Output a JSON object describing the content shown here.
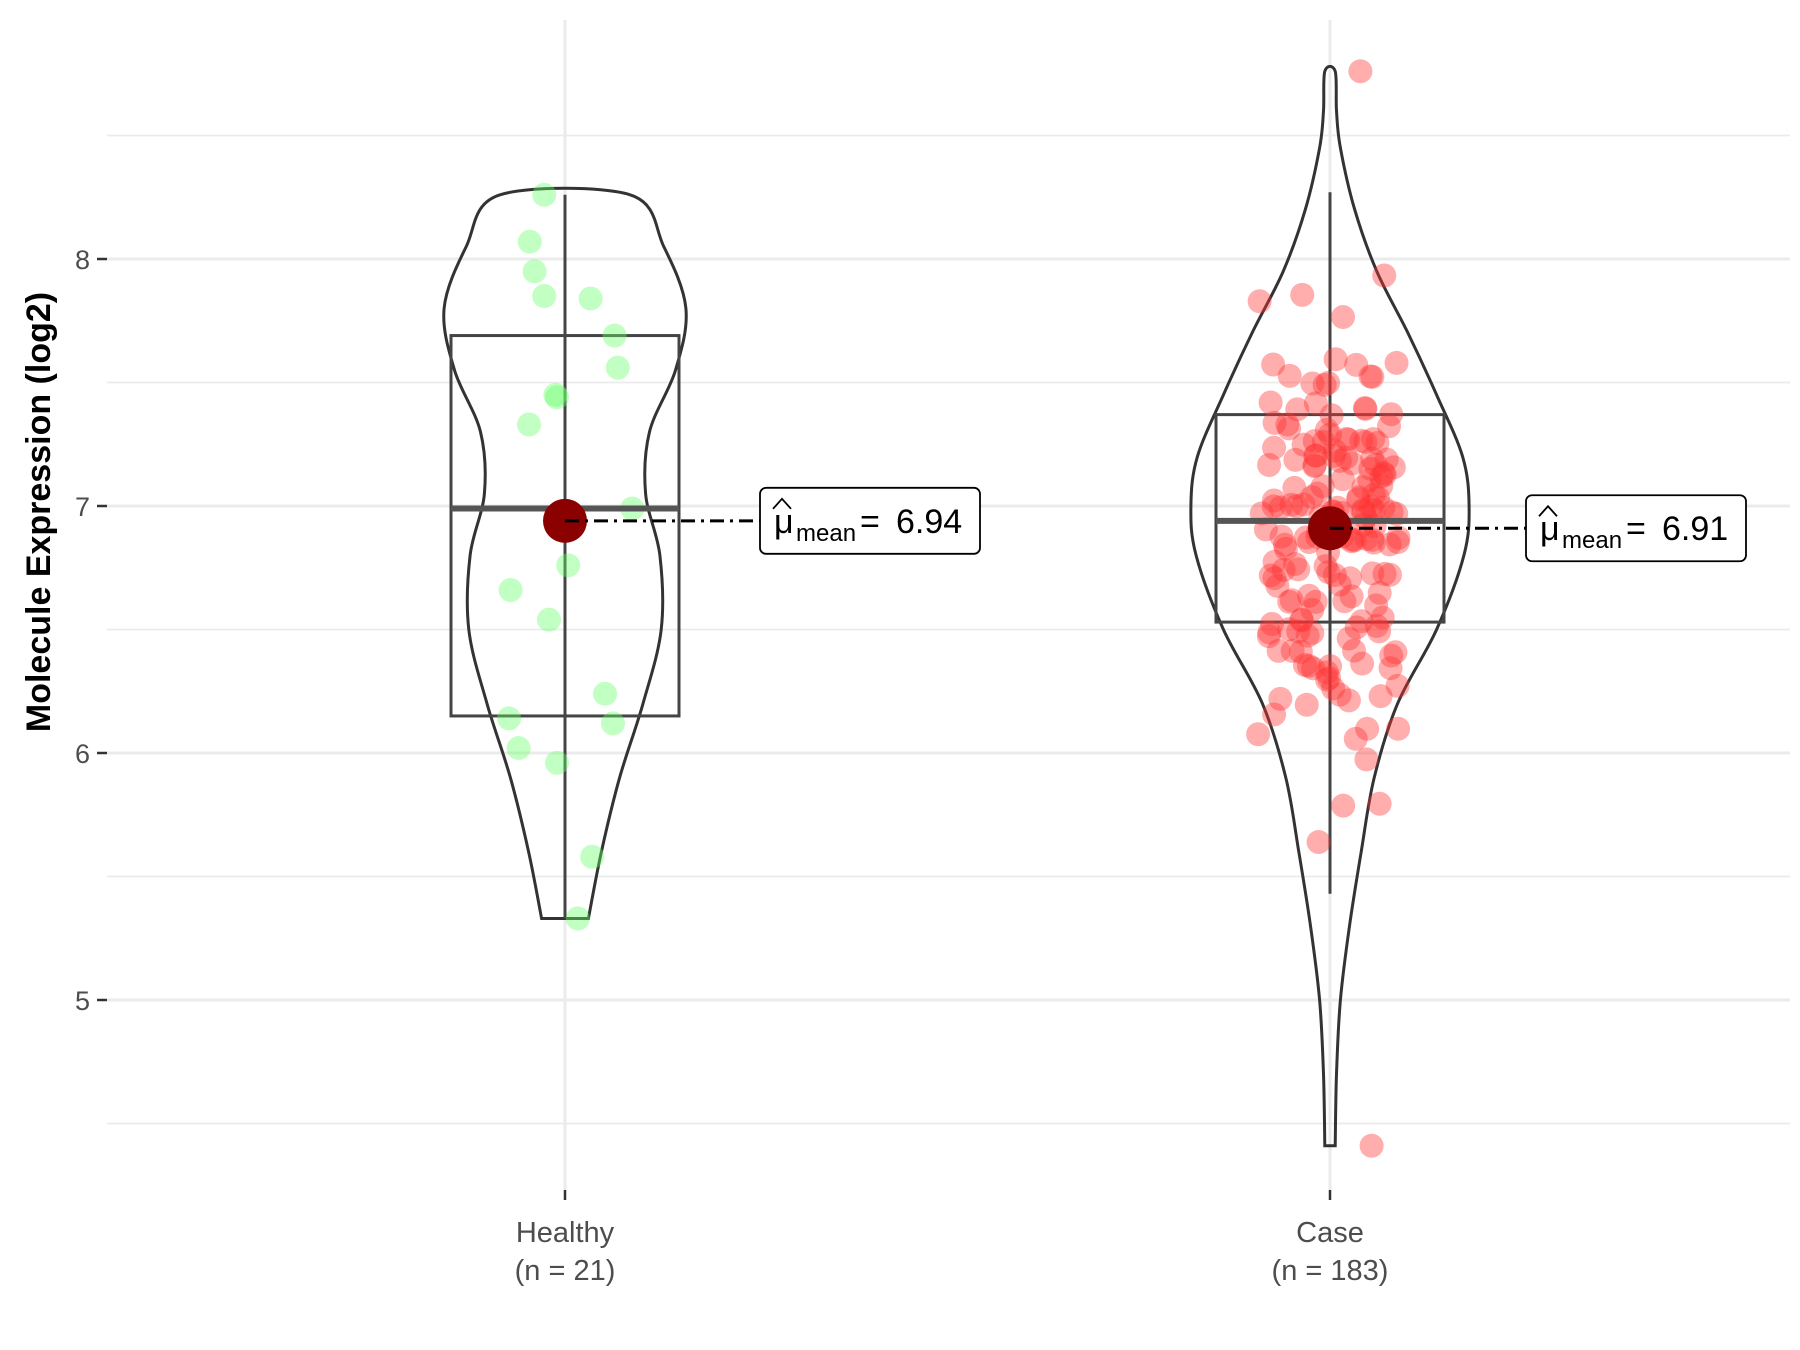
{
  "chart_data": {
    "type": "violin-box-jitter",
    "ylabel": "Molecule Expression (log2)",
    "xlabel": "",
    "ylim": [
      4.33,
      8.87
    ],
    "yticks": [
      5,
      6,
      7,
      8
    ],
    "grid": true,
    "groups": [
      {
        "name": "Healthy",
        "n_label": "(n = 21)",
        "color": "#66ff66",
        "box": {
          "min": 5.33,
          "q1": 6.15,
          "median": 6.99,
          "q3": 7.69,
          "max": 8.26
        },
        "mean": 6.94,
        "mean_label": "6.94",
        "violin": [
          [
            5.33,
            0.18
          ],
          [
            5.6,
            0.28
          ],
          [
            5.9,
            0.42
          ],
          [
            6.2,
            0.6
          ],
          [
            6.5,
            0.74
          ],
          [
            6.8,
            0.73
          ],
          [
            7.05,
            0.62
          ],
          [
            7.3,
            0.65
          ],
          [
            7.55,
            0.85
          ],
          [
            7.8,
            0.93
          ],
          [
            8.05,
            0.76
          ],
          [
            8.26,
            0.5
          ]
        ],
        "points": [
          {
            "x": 0.16,
            "y": 5.33
          },
          {
            "x": 0.34,
            "y": 5.58
          },
          {
            "x": -0.1,
            "y": 5.96
          },
          {
            "x": -0.58,
            "y": 6.02
          },
          {
            "x": 0.6,
            "y": 6.12
          },
          {
            "x": -0.7,
            "y": 6.14
          },
          {
            "x": 0.5,
            "y": 6.24
          },
          {
            "x": -0.2,
            "y": 6.54
          },
          {
            "x": -0.68,
            "y": 6.66
          },
          {
            "x": 0.04,
            "y": 6.76
          },
          {
            "x": 0.84,
            "y": 6.99
          },
          {
            "x": -0.45,
            "y": 7.33
          },
          {
            "x": -0.1,
            "y": 7.44
          },
          {
            "x": -0.12,
            "y": 7.45
          },
          {
            "x": 0.66,
            "y": 7.56
          },
          {
            "x": 0.62,
            "y": 7.69
          },
          {
            "x": 0.32,
            "y": 7.84
          },
          {
            "x": -0.26,
            "y": 7.85
          },
          {
            "x": -0.38,
            "y": 7.95
          },
          {
            "x": -0.44,
            "y": 8.07
          },
          {
            "x": -0.26,
            "y": 8.26
          }
        ]
      },
      {
        "name": "Case",
        "n_label": "(n = 183)",
        "color": "#ff3333",
        "box": {
          "min": 5.43,
          "q1": 6.53,
          "median": 6.94,
          "q3": 7.37,
          "max": 8.27
        },
        "mean": 6.91,
        "mean_label": "6.91",
        "violin": [
          [
            4.41,
            0.04
          ],
          [
            4.7,
            0.05
          ],
          [
            5.0,
            0.08
          ],
          [
            5.3,
            0.15
          ],
          [
            5.6,
            0.24
          ],
          [
            5.9,
            0.34
          ],
          [
            6.2,
            0.52
          ],
          [
            6.5,
            0.82
          ],
          [
            6.8,
            1.03
          ],
          [
            7.0,
            1.07
          ],
          [
            7.2,
            1.02
          ],
          [
            7.45,
            0.82
          ],
          [
            7.7,
            0.6
          ],
          [
            7.95,
            0.36
          ],
          [
            8.2,
            0.19
          ],
          [
            8.45,
            0.08
          ],
          [
            8.6,
            0.05
          ],
          [
            8.76,
            0.04
          ]
        ]
      }
    ]
  }
}
